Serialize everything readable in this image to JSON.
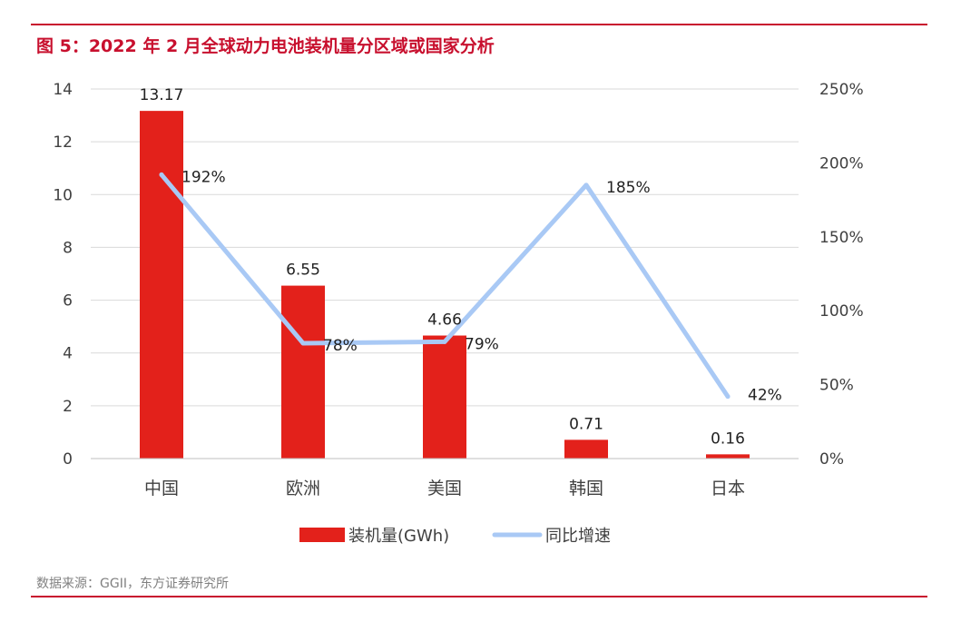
{
  "header": {
    "title": "图 5：2022 年 2 月全球动力电池装机量分区域或国家分析"
  },
  "footer": {
    "source": "数据来源：GGII，东方证券研究所"
  },
  "colors": {
    "brand_red": "#c8102e",
    "bar": "#e3211b",
    "line": "#a9c9f5",
    "grid": "#d9d9d9",
    "text": "#404040"
  },
  "chart_data": {
    "type": "bar",
    "title": "",
    "categories": [
      "中国",
      "欧洲",
      "美国",
      "韩国",
      "日本"
    ],
    "series": [
      {
        "name": "装机量(GWh)",
        "type": "bar",
        "axis": "left",
        "values": [
          13.17,
          6.55,
          4.66,
          0.71,
          0.16
        ],
        "labels": [
          "13.17",
          "6.55",
          "4.66",
          "0.71",
          "0.16"
        ]
      },
      {
        "name": "同比增速",
        "type": "line",
        "axis": "right",
        "values": [
          192,
          78,
          79,
          185,
          42
        ],
        "labels": [
          "192%",
          "78%",
          "79%",
          "185%",
          "42%"
        ]
      }
    ],
    "y_left": {
      "ylim": [
        0,
        14
      ],
      "ticks": [
        "0",
        "2",
        "4",
        "6",
        "8",
        "10",
        "12",
        "14"
      ]
    },
    "y_right": {
      "ylim": [
        0,
        250
      ],
      "ticks": [
        "0%",
        "50%",
        "100%",
        "150%",
        "200%",
        "250%"
      ]
    },
    "grid": true,
    "legend": "bottom"
  }
}
